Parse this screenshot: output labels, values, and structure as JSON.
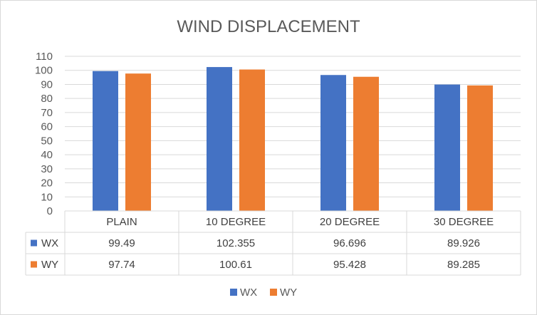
{
  "chart_data": {
    "type": "bar",
    "title": "WIND DISPLACEMENT",
    "categories": [
      "PLAIN",
      "10 DEGREE",
      "20 DEGREE",
      "30 DEGREE"
    ],
    "series": [
      {
        "name": "WX",
        "color": "#4472c4",
        "values": [
          99.49,
          102.355,
          96.696,
          89.926
        ],
        "labels": [
          "99.49",
          "102.355",
          "96.696",
          "89.926"
        ]
      },
      {
        "name": "WY",
        "color": "#ed7d31",
        "values": [
          97.74,
          100.61,
          95.428,
          89.285
        ],
        "labels": [
          "97.74",
          "100.61",
          "95.428",
          "89.285"
        ]
      }
    ],
    "ylim": [
      0,
      110
    ],
    "yticks": [
      "0",
      "10",
      "20",
      "30",
      "40",
      "50",
      "60",
      "70",
      "80",
      "90",
      "100",
      "110"
    ],
    "grid": true,
    "legend": "bottom",
    "data_table": true
  }
}
